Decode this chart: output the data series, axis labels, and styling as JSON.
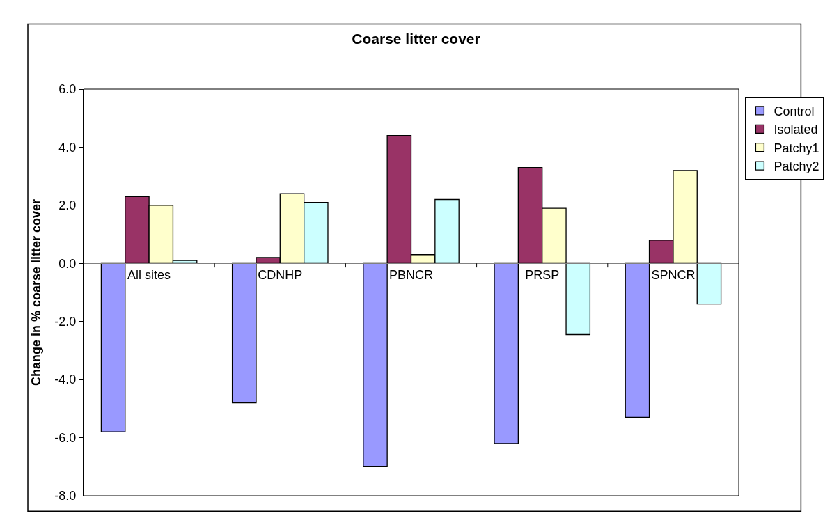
{
  "chart_data": {
    "type": "bar",
    "title": "Coarse litter cover",
    "ylabel": "Change in % coarse litter cover",
    "categories": [
      "All sites",
      "CDNHP",
      "PBNCR",
      "PRSP",
      "SPNCR"
    ],
    "series": [
      {
        "name": "Control",
        "color": "#9999ff",
        "values": [
          -5.8,
          -4.8,
          -7.0,
          -6.2,
          -5.3
        ]
      },
      {
        "name": "Isolated",
        "color": "#993366",
        "values": [
          2.3,
          0.2,
          4.4,
          3.3,
          0.8
        ]
      },
      {
        "name": "Patchy1",
        "color": "#ffffcc",
        "values": [
          2.0,
          2.4,
          0.3,
          1.9,
          3.2
        ]
      },
      {
        "name": "Patchy2",
        "color": "#ccffff",
        "values": [
          0.1,
          2.1,
          2.2,
          -2.45,
          -1.4
        ]
      }
    ],
    "ylim": [
      -8.0,
      6.0
    ],
    "yticks": [
      {
        "value": -8,
        "label": "-8.0"
      },
      {
        "value": -6,
        "label": "-6.0"
      },
      {
        "value": -4,
        "label": "-4.0"
      },
      {
        "value": -2,
        "label": "-2.0"
      },
      {
        "value": 0,
        "label": "0.0"
      },
      {
        "value": 2,
        "label": "2.0"
      },
      {
        "value": 4,
        "label": "4.0"
      },
      {
        "value": 6,
        "label": "6.0"
      }
    ],
    "grid": false,
    "legend": "right"
  }
}
